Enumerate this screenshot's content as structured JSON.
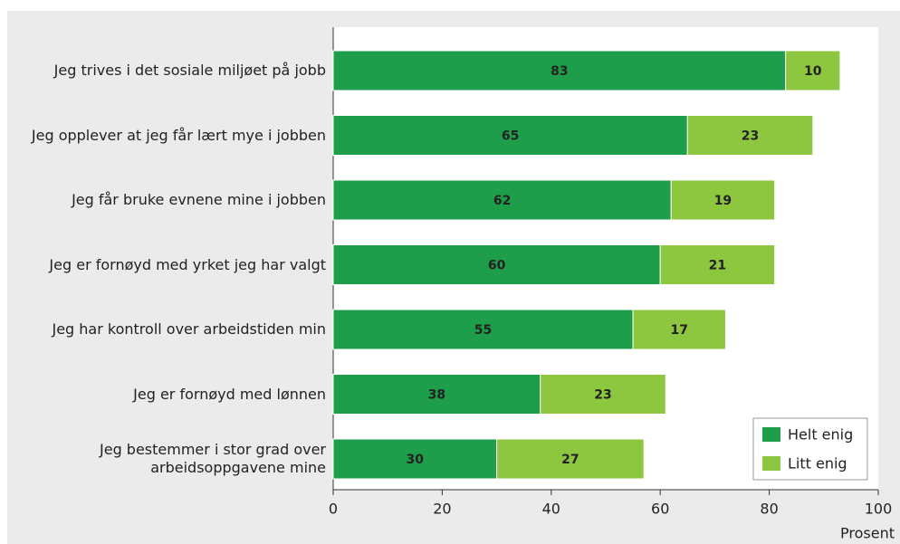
{
  "chart_data": {
    "type": "bar",
    "orientation": "horizontal",
    "stacked": true,
    "categories": [
      "Jeg trives i det sosiale miljøet på jobb",
      "Jeg opplever at jeg får lært mye i jobben",
      "Jeg får bruke evnene mine i jobben",
      "Jeg er fornøyd med yrket jeg har valgt",
      "Jeg har kontroll over arbeidstiden min",
      "Jeg er fornøyd med lønnen",
      "Jeg bestemmer i stor grad over\narbeidsoppgavene mine"
    ],
    "series": [
      {
        "name": "Helt enig",
        "color": "#1e9e4a",
        "values": [
          83,
          65,
          62,
          60,
          55,
          38,
          30
        ]
      },
      {
        "name": "Litt enig",
        "color": "#8dc63f",
        "values": [
          10,
          23,
          19,
          21,
          17,
          23,
          27
        ]
      }
    ],
    "xlim": [
      0,
      100
    ],
    "xticks": [
      0,
      20,
      40,
      60,
      80,
      100
    ],
    "xlabel": "Prosent",
    "legend": "lower right"
  }
}
